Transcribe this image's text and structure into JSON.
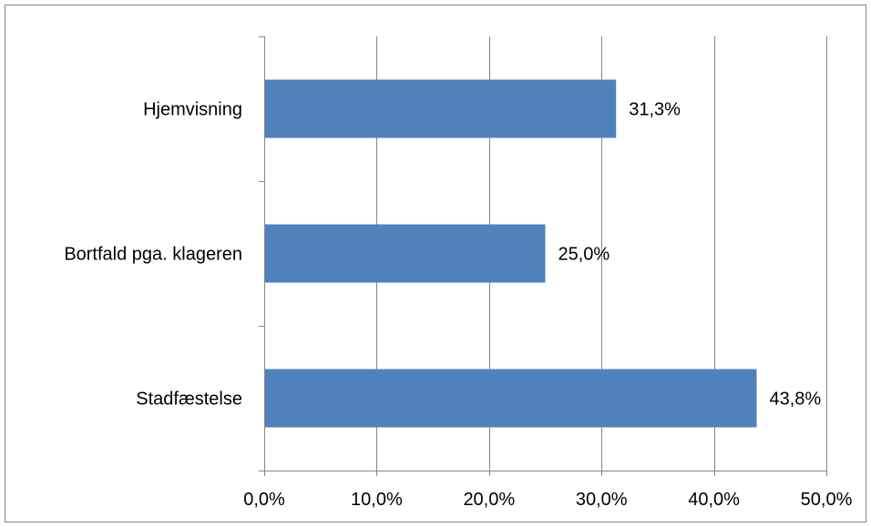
{
  "chart_data": {
    "type": "bar",
    "orientation": "horizontal",
    "categories": [
      "Hjemvisning",
      "Bortfald pga. klageren",
      "Stadfæstelse"
    ],
    "values": [
      31.3,
      25.0,
      43.8
    ],
    "value_labels": [
      "31,3%",
      "25,0%",
      "43,8%"
    ],
    "xlim": [
      0,
      50
    ],
    "xticks": [
      0,
      10,
      20,
      30,
      40,
      50
    ],
    "xtick_labels": [
      "0,0%",
      "10,0%",
      "20,0%",
      "30,0%",
      "40,0%",
      "50,0%"
    ],
    "title": "",
    "xlabel": "",
    "ylabel": "",
    "grid": "vertical",
    "legend": "none",
    "colors": {
      "bar": "#4f81bd",
      "grid": "#868686",
      "axis": "#868686",
      "frame": "#868686",
      "text": "#000000"
    }
  }
}
